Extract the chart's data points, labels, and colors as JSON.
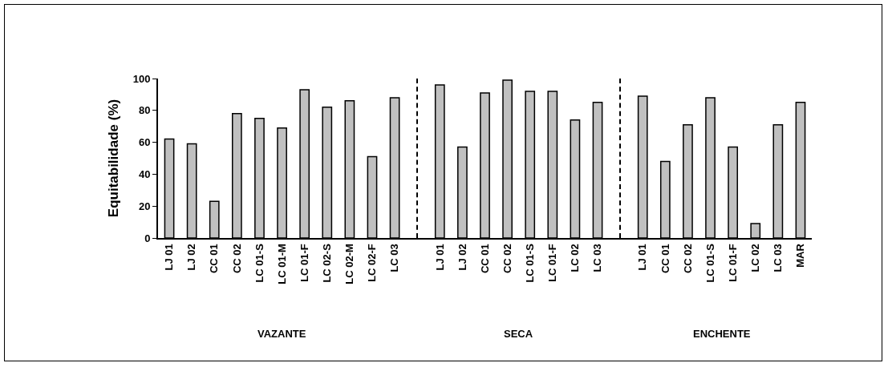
{
  "chart_data": {
    "type": "bar",
    "ylabel": "Equitabilidade (%)",
    "categories": [
      "LJ 01",
      "LJ 02",
      "CC 01",
      "CC 02",
      "LC 01-S",
      "LC 01-M",
      "LC 01-F",
      "LC 02-S",
      "LC 02-M",
      "LC 02-F",
      "LC 03",
      null,
      "LJ 01",
      "LJ 02",
      "CC 01",
      "CC 02",
      "LC 01-S",
      "LC 01-F",
      "LC 02",
      "LC 03",
      null,
      "LJ 01",
      "CC 01",
      "CC 02",
      "LC 01-S",
      "LC 01-F",
      "LC 02",
      "LC 03",
      "MAR"
    ],
    "values": [
      62,
      59,
      23,
      78,
      75,
      69,
      93,
      82,
      86,
      51,
      88,
      null,
      96,
      57,
      91,
      99,
      92,
      92,
      74,
      85,
      null,
      89,
      48,
      71,
      88,
      57,
      9,
      71,
      85
    ],
    "color": "#c0c0c0",
    "ylim": [
      0,
      100
    ],
    "yticks": [
      0,
      20,
      40,
      60,
      80,
      100
    ],
    "annotations": [
      "VAZANTE",
      "SECA",
      "ENCHENTE"
    ]
  }
}
